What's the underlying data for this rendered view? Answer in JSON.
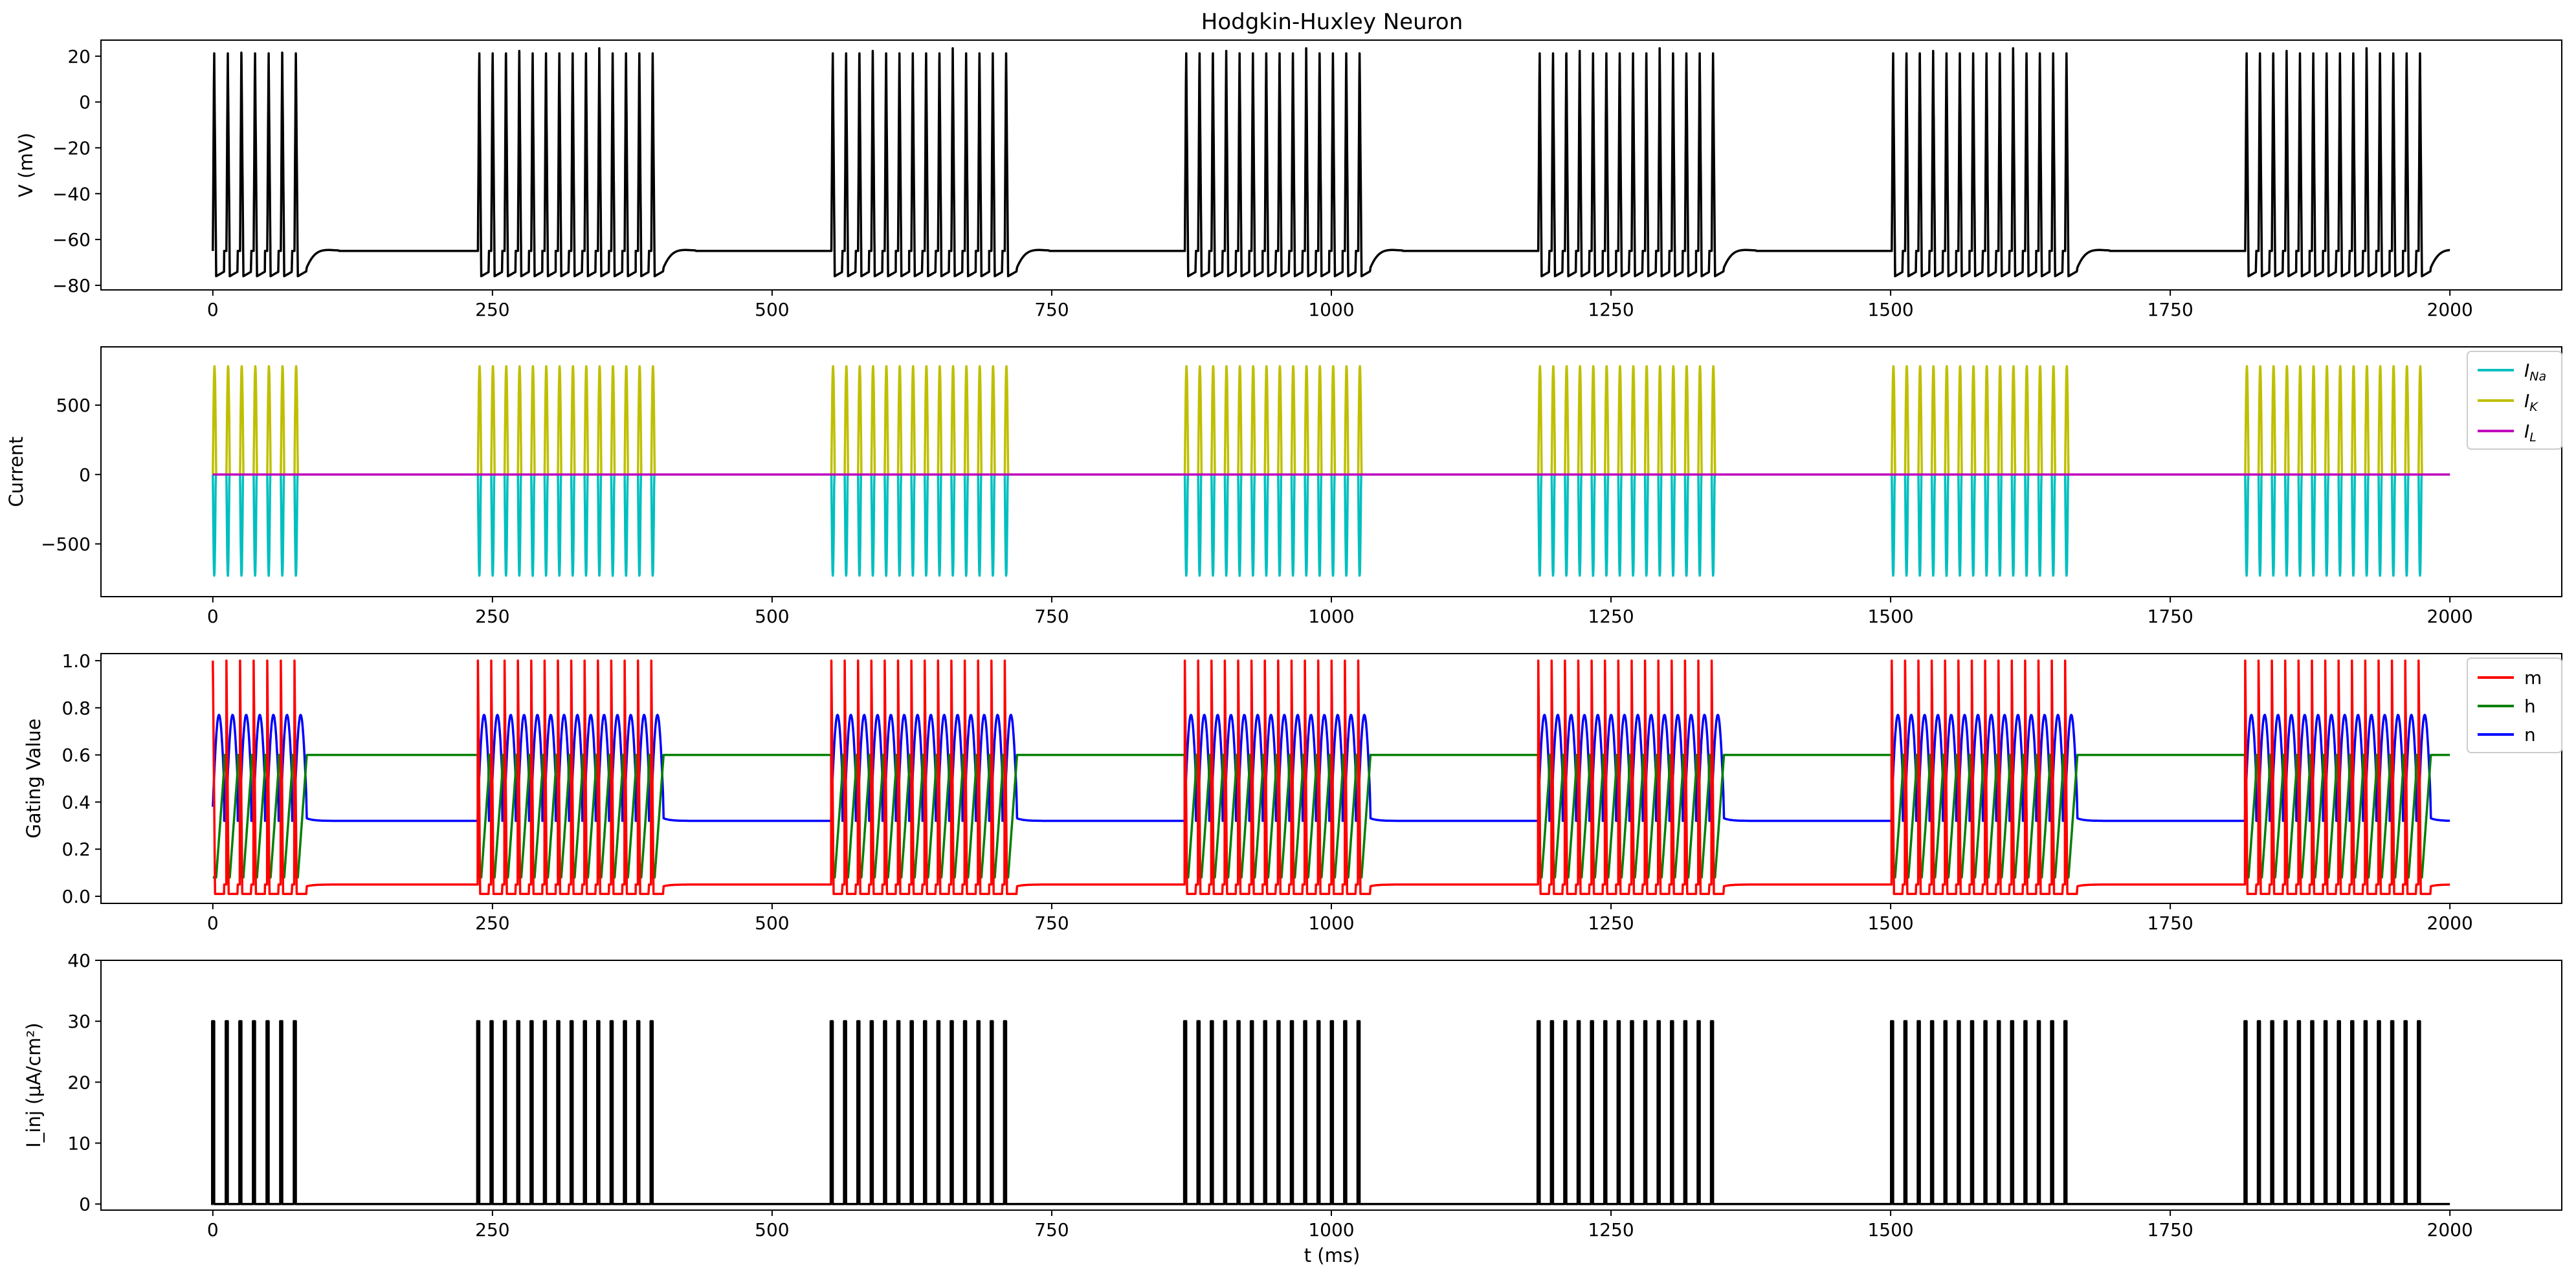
{
  "title": "Hodgkin-Huxley Neuron",
  "xlabel": "t (ms)",
  "colors": {
    "V": "#000000",
    "I_Na": "#00bfbf",
    "I_K": "#bfbf00",
    "I_L": "#bf00bf",
    "m": "#ff0000",
    "h": "#008000",
    "n": "#0000ff",
    "I_inj": "#000000"
  },
  "chart_data": [
    {
      "type": "line",
      "title": "Hodgkin-Huxley Neuron",
      "xlabel": "",
      "ylabel": "V (mV)",
      "xlim": [
        -100,
        2100
      ],
      "ylim": [
        -82,
        27
      ],
      "xticks": [
        0,
        250,
        500,
        750,
        1000,
        1250,
        1500,
        1750,
        2000
      ],
      "xtick_labels": [
        "0",
        "250",
        "500",
        "750",
        "1000",
        "1250",
        "1500",
        "1750",
        "2000"
      ],
      "yticks": [
        -80,
        -60,
        -40,
        -20,
        0,
        20
      ],
      "ytick_labels": [
        "−80",
        "−60",
        "−40",
        "−20",
        "0",
        "20"
      ],
      "series": [
        {
          "key": "V",
          "baseline": -65,
          "peak": 24,
          "trough": -76
        }
      ]
    },
    {
      "type": "line",
      "xlabel": "",
      "ylabel": "Current",
      "xlim": [
        -100,
        2100
      ],
      "ylim": [
        -880,
        920
      ],
      "xticks": [
        0,
        250,
        500,
        750,
        1000,
        1250,
        1500,
        1750,
        2000
      ],
      "xtick_labels": [
        "0",
        "250",
        "500",
        "750",
        "1000",
        "1250",
        "1500",
        "1750",
        "2000"
      ],
      "yticks": [
        -500,
        0,
        500
      ],
      "ytick_labels": [
        "−500",
        "0",
        "500"
      ],
      "legend": {
        "position": "top-right",
        "entries": [
          {
            "key": "I_Na",
            "label": "I",
            "sub": "Na"
          },
          {
            "key": "I_K",
            "label": "I",
            "sub": "K"
          },
          {
            "key": "I_L",
            "label": "I",
            "sub": "L"
          }
        ]
      },
      "series": [
        {
          "key": "I_K",
          "peak": 780
        },
        {
          "key": "I_Na",
          "peak": -730
        },
        {
          "key": "I_L",
          "value": 0
        }
      ]
    },
    {
      "type": "line",
      "xlabel": "",
      "ylabel": "Gating Value",
      "xlim": [
        -100,
        2100
      ],
      "ylim": [
        -0.03,
        1.03
      ],
      "xticks": [
        0,
        250,
        500,
        750,
        1000,
        1250,
        1500,
        1750,
        2000
      ],
      "xtick_labels": [
        "0",
        "250",
        "500",
        "750",
        "1000",
        "1250",
        "1500",
        "1750",
        "2000"
      ],
      "yticks": [
        0.0,
        0.2,
        0.4,
        0.6,
        0.8,
        1.0
      ],
      "ytick_labels": [
        "0.0",
        "0.2",
        "0.4",
        "0.6",
        "0.8",
        "1.0"
      ],
      "legend": {
        "position": "top-right",
        "entries": [
          {
            "key": "m",
            "label": "m"
          },
          {
            "key": "h",
            "label": "h"
          },
          {
            "key": "n",
            "label": "n"
          }
        ]
      },
      "series": [
        {
          "key": "m",
          "rest": 0.05,
          "high": 1.0,
          "low": 0.01
        },
        {
          "key": "h",
          "rest": 0.6,
          "high": 0.6,
          "low": 0.08
        },
        {
          "key": "n",
          "rest": 0.32,
          "high": 0.77,
          "low": 0.38
        }
      ]
    },
    {
      "type": "line",
      "xlabel": "t (ms)",
      "ylabel": "I_inj (μA/cm²)",
      "xlim": [
        -100,
        2100
      ],
      "ylim": [
        -1,
        40
      ],
      "xticks": [
        0,
        250,
        500,
        750,
        1000,
        1250,
        1500,
        1750,
        2000
      ],
      "xtick_labels": [
        "0",
        "250",
        "500",
        "750",
        "1000",
        "1250",
        "1500",
        "1750",
        "2000"
      ],
      "yticks": [
        0,
        10,
        20,
        30,
        40
      ],
      "ytick_labels": [
        "0",
        "10",
        "20",
        "30",
        "40"
      ],
      "series": [
        {
          "key": "I_inj",
          "high": 30,
          "low": 0
        }
      ]
    }
  ],
  "bursts": [
    {
      "start": 0,
      "end": 73,
      "spikes": 7
    },
    {
      "start": 237,
      "end": 392,
      "spikes": 14
    },
    {
      "start": 553,
      "end": 708,
      "spikes": 14
    },
    {
      "start": 869,
      "end": 1024,
      "spikes": 14
    },
    {
      "start": 1185,
      "end": 1340,
      "spikes": 14
    },
    {
      "start": 1501,
      "end": 1656,
      "spikes": 14
    },
    {
      "start": 1817,
      "end": 1972,
      "spikes": 14
    }
  ],
  "t_end": 2000
}
